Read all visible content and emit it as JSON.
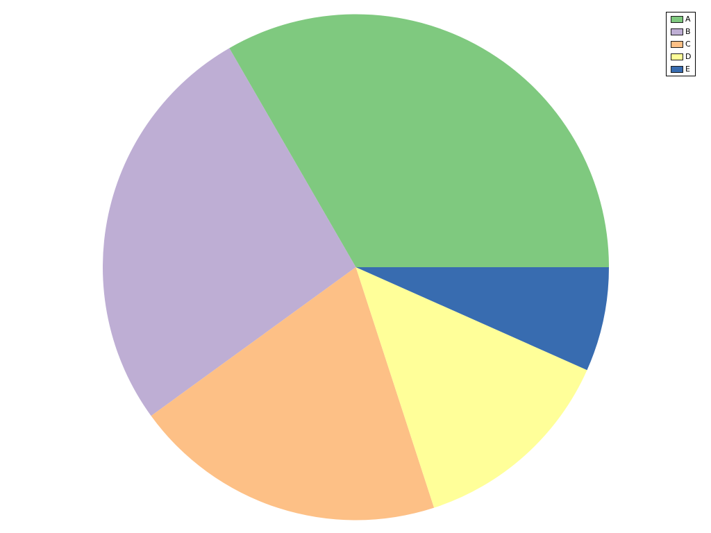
{
  "figure": {
    "background_color": "#ffffff"
  },
  "chart_data": {
    "type": "pie",
    "title": "",
    "labels": [
      "A",
      "B",
      "C",
      "D",
      "E"
    ],
    "values": [
      5,
      4,
      3,
      2,
      1
    ],
    "percentages": [
      33.3,
      26.7,
      20.0,
      13.3,
      6.7
    ],
    "angles_deg": [
      120,
      96,
      72,
      48,
      24
    ],
    "colors": [
      "#7fc97f",
      "#beaed4",
      "#fdc086",
      "#ffff99",
      "#386cb0"
    ],
    "start_angle_deg": 0,
    "direction": "counterclockwise",
    "legend": {
      "position": "upper right",
      "border_color": "#000000",
      "background_color": "#ffffff",
      "entries": [
        {
          "label": "A",
          "color": "#7fc97f"
        },
        {
          "label": "B",
          "color": "#beaed4"
        },
        {
          "label": "C",
          "color": "#fdc086"
        },
        {
          "label": "D",
          "color": "#ffff99"
        },
        {
          "label": "E",
          "color": "#386cb0"
        }
      ]
    }
  }
}
